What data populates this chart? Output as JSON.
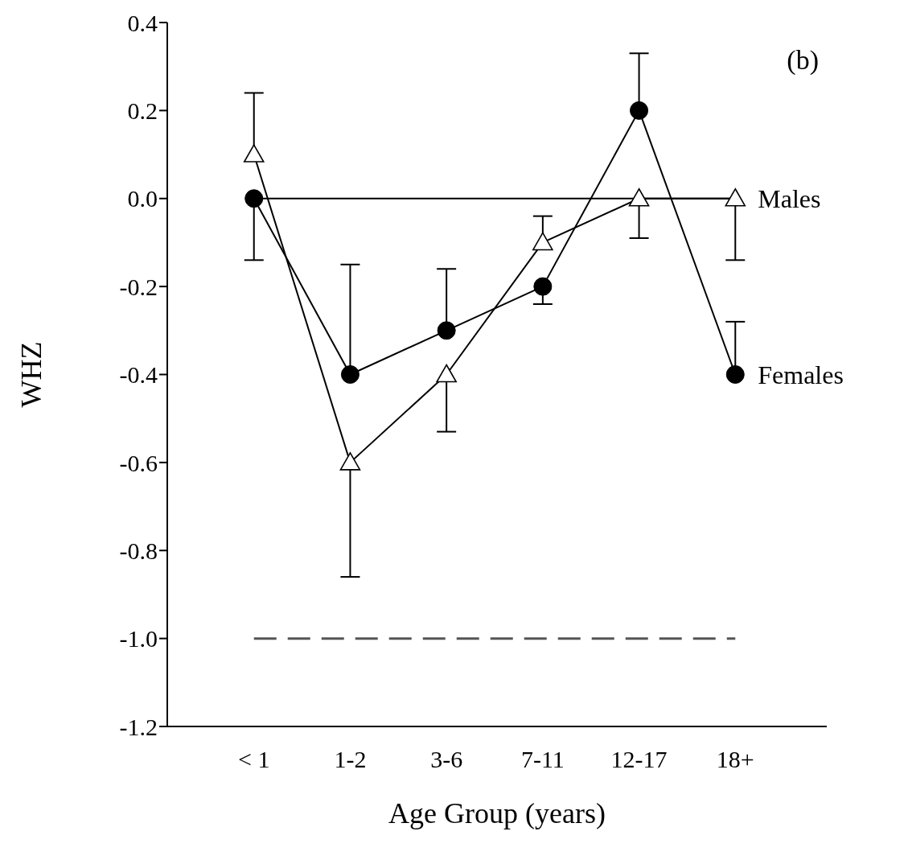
{
  "chart_data": {
    "type": "line",
    "xlabel": "Age Group (years)",
    "ylabel": "WHZ",
    "annotations": [
      "(b)"
    ],
    "categories": [
      "< 1",
      "1-2",
      "3-6",
      "7-11",
      "12-17",
      "18+"
    ],
    "series": [
      {
        "name": "Males",
        "color": "#000000",
        "marker": "triangle",
        "values": [
          0.1,
          -0.6,
          -0.4,
          -0.1,
          0.0,
          0.0
        ],
        "errors": [
          [
            0.1,
            0.24
          ],
          [
            -0.86,
            -0.6
          ],
          [
            -0.53,
            -0.4
          ],
          [
            -0.1,
            -0.04
          ],
          [
            -0.09,
            0.0
          ],
          [
            -0.14,
            0.0
          ]
        ]
      },
      {
        "name": "Females",
        "color": "#000000",
        "marker": "circle",
        "values": [
          0.0,
          -0.4,
          -0.3,
          -0.2,
          0.2,
          -0.4
        ],
        "errors": [
          [
            -0.14,
            0.0
          ],
          [
            -0.4,
            -0.15
          ],
          [
            -0.3,
            -0.16
          ],
          [
            -0.24,
            -0.2
          ],
          [
            0.2,
            0.33
          ],
          [
            -0.4,
            -0.28
          ]
        ]
      }
    ],
    "ylim": [
      -1.2,
      0.4
    ],
    "yticks": [
      {
        "value": -1.2,
        "label": "-1.2"
      },
      {
        "value": -1.0,
        "label": "-1.0"
      },
      -0.8,
      -0.6,
      -0.4,
      -0.2,
      {
        "value": 0,
        "label": "0.0"
      },
      0.2,
      0.4
    ],
    "ref_lines": [
      {
        "axis": "y",
        "value": 0,
        "color": "#000000",
        "line_style": "solid"
      },
      {
        "axis": "y",
        "value": -1,
        "color": "#555555",
        "line_style": "dashed"
      }
    ],
    "grid": false,
    "legend": "right"
  }
}
